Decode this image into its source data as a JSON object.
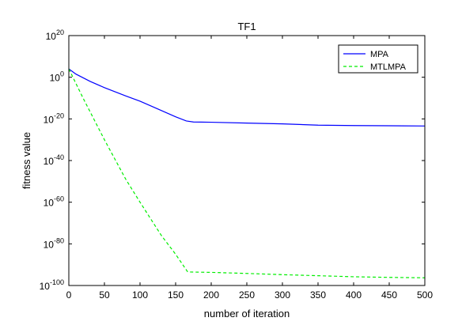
{
  "chart_data": {
    "type": "line",
    "title": "TF1",
    "xlabel": "number of iteration",
    "ylabel": "fitness value",
    "xlim": [
      0,
      500
    ],
    "ylim_log10": [
      -100,
      20
    ],
    "yscale": "log",
    "x_ticks": [
      "0",
      "50",
      "100",
      "150",
      "200",
      "250",
      "300",
      "350",
      "400",
      "450",
      "500"
    ],
    "y_ticks": [
      {
        "base": "10",
        "exp": "20"
      },
      {
        "base": "10",
        "exp": "0"
      },
      {
        "base": "10",
        "exp": "-20"
      },
      {
        "base": "10",
        "exp": "-40"
      },
      {
        "base": "10",
        "exp": "-60"
      },
      {
        "base": "10",
        "exp": "-80"
      },
      {
        "base": "10",
        "exp": "-100"
      }
    ],
    "grid": false,
    "legend_position": "top-right",
    "series": [
      {
        "name": "MPA",
        "color": "#0000ff",
        "style": "solid",
        "x": [
          0,
          10,
          30,
          50,
          80,
          100,
          120,
          150,
          165,
          175,
          200,
          250,
          300,
          350,
          400,
          450,
          500
        ],
        "log10_y": [
          4,
          1.5,
          -2,
          -5,
          -9,
          -11.5,
          -14.5,
          -19,
          -21,
          -21.5,
          -21.6,
          -22,
          -22.4,
          -23,
          -23.2,
          -23.3,
          -23.4
        ]
      },
      {
        "name": "MTLMPA",
        "color": "#00ee00",
        "style": "dashed",
        "x": [
          0,
          20,
          50,
          80,
          100,
          130,
          150,
          167,
          200,
          250,
          300,
          350,
          400,
          450,
          500
        ],
        "log10_y": [
          4,
          -10,
          -30,
          -49,
          -60,
          -76,
          -85,
          -93.5,
          -93.7,
          -94.2,
          -94.8,
          -95.3,
          -95.8,
          -96.1,
          -96.3
        ]
      }
    ]
  }
}
